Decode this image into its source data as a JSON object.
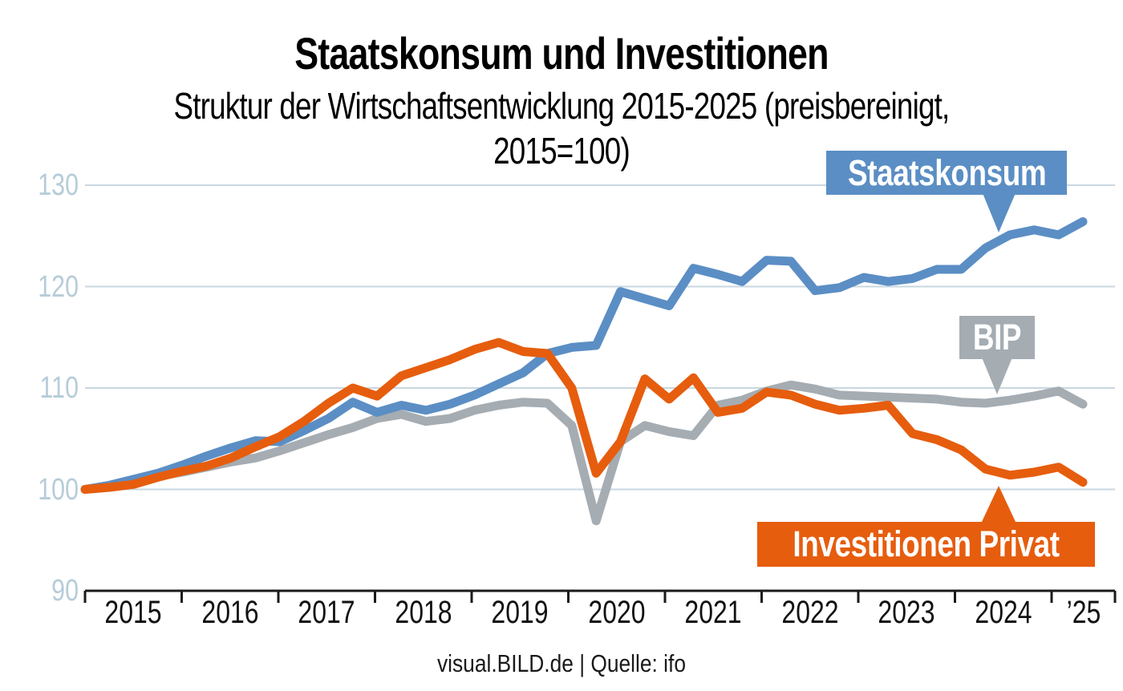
{
  "title": "Staatskonsum und Investitionen",
  "subtitle": "Struktur der Wirtschaftsentwicklung 2015-2025 (preisbereinigt, 2015=100)",
  "footer": "visual.BILD.de | Quelle: ifo",
  "annotations": {
    "staatskonsum": "Staatskonsum",
    "bip": "BIP",
    "investitionen": "Investitionen Privat"
  },
  "colors": {
    "staatskonsum_blue": "#5b8ec4",
    "bip_gray": "#a5acb2",
    "investitionen_orange": "#e65d0e",
    "gridline": "#c9d7e0",
    "y_label": "#b6ccd9",
    "axis": "#1a1a1a"
  },
  "chart_data": {
    "type": "line",
    "title": "Staatskonsum und Investitionen",
    "subtitle": "Struktur der Wirtschaftsentwicklung 2015-2025 (preisbereinigt, 2015=100)",
    "source": "visual.BILD.de | Quelle: ifo",
    "x_unit": "quarter",
    "x_range": [
      "2015-Q1",
      "2025-Q2"
    ],
    "x_tick_labels": [
      "2015",
      "2016",
      "2017",
      "2018",
      "2019",
      "2020",
      "2021",
      "2022",
      "2023",
      "2024",
      "’25"
    ],
    "y_tick_labels": [
      130,
      120,
      110,
      100,
      90
    ],
    "ylim": [
      90,
      130
    ],
    "gridlines_at": [
      100,
      110,
      120,
      130
    ],
    "legend_position": "labels-on-chart",
    "series": [
      {
        "name": "Staatskonsum",
        "color": "#5b8ec4",
        "values": [
          100.0,
          100.4,
          101.0,
          101.6,
          102.4,
          103.3,
          104.1,
          104.8,
          104.7,
          105.8,
          107.0,
          108.6,
          107.6,
          108.3,
          107.8,
          108.4,
          109.3,
          110.4,
          111.5,
          113.4,
          114.0,
          114.2,
          119.5,
          118.8,
          118.1,
          121.8,
          121.2,
          120.5,
          122.6,
          122.5,
          119.6,
          119.9,
          120.9,
          120.5,
          120.8,
          121.7,
          121.7,
          123.8,
          125.1,
          125.6,
          125.1,
          126.4
        ]
      },
      {
        "name": "BIP",
        "color": "#a5acb2",
        "values": [
          100.0,
          100.3,
          100.8,
          101.3,
          101.7,
          102.2,
          102.7,
          103.1,
          103.8,
          104.6,
          105.4,
          106.1,
          107.0,
          107.4,
          106.7,
          107.0,
          107.8,
          108.3,
          108.6,
          108.5,
          106.3,
          96.9,
          104.7,
          106.3,
          105.7,
          105.3,
          108.3,
          108.8,
          109.7,
          110.3,
          109.9,
          109.3,
          109.2,
          109.1,
          109.0,
          108.9,
          108.6,
          108.5,
          108.8,
          109.2,
          109.7,
          108.4
        ]
      },
      {
        "name": "Investitionen Privat",
        "color": "#e65d0e",
        "values": [
          100.0,
          100.2,
          100.5,
          101.2,
          101.8,
          102.3,
          103.1,
          104.2,
          105.2,
          106.7,
          108.5,
          110.0,
          109.2,
          111.2,
          112.0,
          112.8,
          113.8,
          114.5,
          113.6,
          113.4,
          110.0,
          101.6,
          104.7,
          110.9,
          108.9,
          111.0,
          107.6,
          108.0,
          109.6,
          109.3,
          108.4,
          107.8,
          108.0,
          108.3,
          105.5,
          104.9,
          103.9,
          102.0,
          101.4,
          101.7,
          102.2,
          100.7
        ]
      }
    ]
  }
}
